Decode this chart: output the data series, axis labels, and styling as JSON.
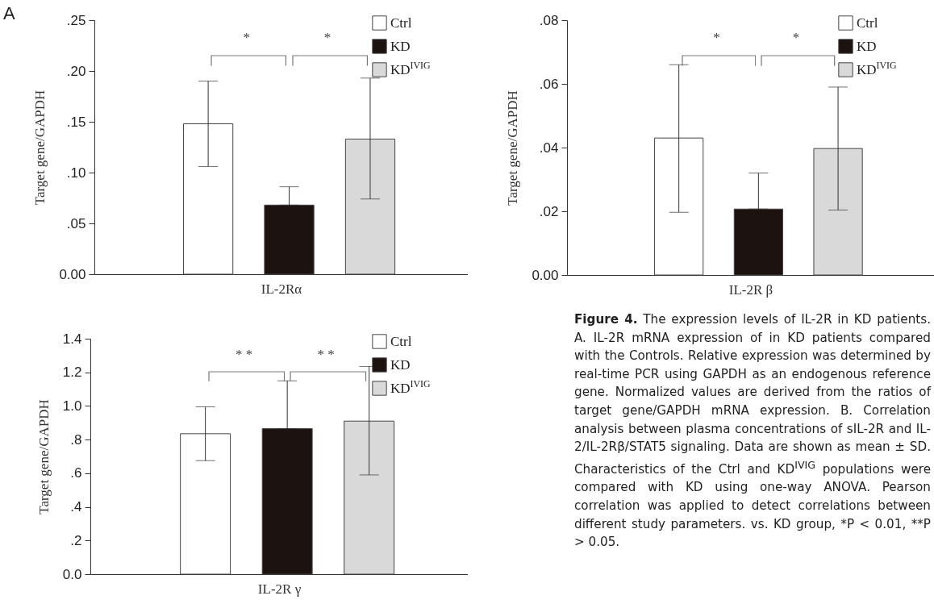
{
  "chart_data": [
    {
      "type": "bar",
      "title": "A",
      "categories": [
        "IL-2Rα"
      ],
      "ylabel": "Target gene/GAPDH",
      "ylim": [
        0,
        0.25
      ],
      "yticks": [
        {
          "value": 0,
          "label": "0.00"
        },
        {
          "value": 0.05,
          "label": ".05"
        },
        {
          "value": 0.1,
          "label": ".10"
        },
        {
          "value": 0.15,
          "label": ".15"
        },
        {
          "value": 0.2,
          "label": ".20"
        },
        {
          "value": 0.25,
          "label": ".25"
        }
      ],
      "legend": "top right",
      "annotations": [
        "*",
        "*"
      ],
      "series": [
        {
          "name": "Ctrl",
          "color": "#ffffff",
          "values": [
            0.148
          ],
          "errors": [
            [
              0.106,
              0.19
            ]
          ]
        },
        {
          "name": "KD",
          "color": "#1c1311",
          "values": [
            0.068
          ],
          "errors": [
            [
              0.068,
              0.086
            ]
          ]
        },
        {
          "name": "KD$^{IVIG}$",
          "color": "#d9d9d9",
          "values": [
            0.133
          ],
          "errors": [
            [
              0.074,
              0.193
            ]
          ]
        }
      ]
    },
    {
      "type": "bar",
      "categories": [
        "IL-2R β"
      ],
      "ylabel": "Target gene/GAPDH",
      "ylim": [
        0,
        0.08
      ],
      "yticks": [
        {
          "value": 0,
          "label": "0.00"
        },
        {
          "value": 0.02,
          "label": ".02"
        },
        {
          "value": 0.04,
          "label": ".04"
        },
        {
          "value": 0.06,
          "label": ".06"
        },
        {
          "value": 0.08,
          "label": ".08"
        }
      ],
      "legend": "top right",
      "annotations": [
        "*",
        "*"
      ],
      "series": [
        {
          "name": "Ctrl",
          "color": "#ffffff",
          "values": [
            0.043
          ],
          "errors": [
            [
              0.0197,
              0.066
            ]
          ]
        },
        {
          "name": "KD",
          "color": "#1c1311",
          "values": [
            0.0207
          ],
          "errors": [
            [
              0.0207,
              0.032
            ]
          ]
        },
        {
          "name": "KD$^{IVIG}$",
          "color": "#d9d9d9",
          "values": [
            0.0397
          ],
          "errors": [
            [
              0.0204,
              0.059
            ]
          ]
        }
      ]
    },
    {
      "type": "bar",
      "categories": [
        "IL-2R γ"
      ],
      "ylabel": "Target gene/GAPDH",
      "ylim": [
        0,
        1.4
      ],
      "yticks": [
        {
          "value": 0,
          "label": "0.0"
        },
        {
          "value": 0.2,
          "label": ".2"
        },
        {
          "value": 0.4,
          "label": ".4"
        },
        {
          "value": 0.6,
          "label": ".6"
        },
        {
          "value": 0.8,
          "label": ".8"
        },
        {
          "value": 1,
          "label": "1.0"
        },
        {
          "value": 1.2,
          "label": "1.2"
        },
        {
          "value": 1.4,
          "label": "1.4"
        }
      ],
      "legend": "top right",
      "annotations": [
        "* *",
        "* *"
      ],
      "series": [
        {
          "name": "Ctrl",
          "color": "#ffffff",
          "values": [
            0.835
          ],
          "errors": [
            [
              0.675,
              0.995
            ]
          ]
        },
        {
          "name": "KD",
          "color": "#1c1311",
          "values": [
            0.865
          ],
          "errors": [
            [
              0.865,
              1.15
            ]
          ]
        },
        {
          "name": "KD$^{IVIG}$",
          "color": "#d9d9d9",
          "values": [
            0.91
          ],
          "errors": [
            [
              0.59,
              1.235
            ]
          ]
        }
      ]
    },
    {
      "type": "other",
      "title": "Figure 4.",
      "annotations": [
        "The expression levels of IL-2R in KD patients. A. IL-2R mRNA expression of in KD patients compared with the Controls. Relative expression was determined by real-time PCR using GAPDH as an endogenous reference gene. Normalized values are derived from the ratios of target gene/GAPDH mRNA expression. B. Correlation analysis between plasma concentrations of sIL-2R and IL-2/IL-2Rβ/STAT5 signaling. Data are shown as mean ± SD. Characteristics of the Ctrl and KD$^{IVIG}$ populations were compared with KD using one-way ANOVA. Pearson correlation was applied to detect correlations between different study parameters. vs. KD group, *P < 0.01, **P > 0.05."
      ]
    }
  ]
}
